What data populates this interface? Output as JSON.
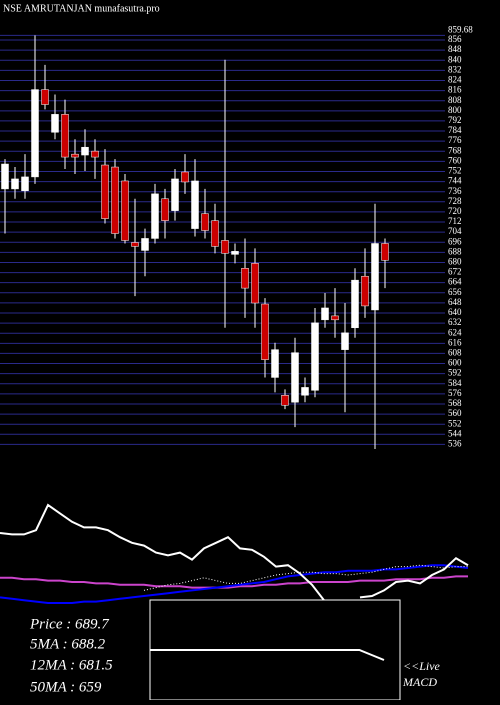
{
  "chart_data": [
    {
      "type": "candlestick",
      "title": "NSE AMRUTANJAN munafasutra.pro",
      "up_color": "#ffffff",
      "down_color": "#cc0000",
      "grid": true,
      "grid_color": "#2a2a8a",
      "open": [
        738.2,
        738.2,
        736.7,
        747.7,
        816.8,
        783.0,
        797.2,
        765.7,
        765.0,
        768.1,
        757.1,
        755.5,
        744.5,
        695.8,
        689.5,
        699.0,
        730.4,
        721.0,
        751.6,
        706.8,
        718.6,
        713.1,
        697.4,
        686.4,
        675.4,
        679.3,
        647.1,
        589.0,
        574.9,
        569.4,
        574.9,
        578.8,
        634.6,
        637.7,
        611.0,
        628.3,
        669.1,
        642.4,
        695.0
      ],
      "high": [
        761.8,
        755.5,
        765.7,
        859.7,
        836.4,
        812.9,
        808.9,
        777.5,
        785.4,
        777.5,
        769.7,
        761.8,
        750.0,
        730.4,
        706.8,
        742.2,
        738.2,
        754.0,
        765.7,
        761.8,
        738.2,
        726.5,
        840.4,
        695.0,
        699.0,
        691.1,
        651.8,
        616.5,
        579.6,
        620.4,
        589.0,
        644.0,
        655.8,
        659.7,
        647.9,
        675.4,
        691.1,
        726.5,
        699.0
      ],
      "low": [
        702.9,
        730.4,
        730.4,
        742.2,
        801.1,
        777.5,
        754.0,
        750.0,
        752.4,
        746.1,
        710.8,
        699.0,
        695.0,
        653.4,
        669.1,
        695.0,
        699.0,
        713.1,
        734.3,
        700.5,
        699.0,
        687.2,
        628.3,
        679.3,
        636.1,
        628.3,
        589.0,
        577.2,
        563.9,
        549.7,
        569.4,
        573.3,
        628.3,
        620.4,
        561.5,
        620.4,
        636.1,
        532.4,
        659.7
      ],
      "close": [
        757.9,
        746.1,
        747.7,
        816.8,
        805.0,
        797.2,
        763.4,
        763.4,
        771.2,
        763.4,
        714.7,
        702.9,
        697.4,
        692.7,
        699.0,
        734.3,
        713.1,
        746.1,
        743.7,
        744.5,
        705.3,
        692.7,
        687.2,
        688.8,
        659.7,
        647.9,
        603.1,
        611.0,
        567.0,
        608.6,
        581.1,
        632.2,
        644.0,
        634.6,
        624.3,
        666.0,
        645.6,
        695.0,
        681.7
      ],
      "ylim": [
        530,
        860
      ],
      "yticks": [
        859.68,
        856,
        848,
        840,
        832,
        824,
        816,
        808,
        800,
        792,
        784,
        776,
        768,
        760,
        752,
        744,
        736,
        728,
        720,
        712,
        704,
        696,
        688,
        680,
        672,
        664,
        656,
        648,
        640,
        632,
        624,
        616,
        608,
        600,
        592,
        584,
        576,
        568,
        560,
        552,
        544,
        536
      ]
    },
    {
      "type": "line",
      "ylim": [
        0,
        100
      ],
      "series": [
        {
          "color": "#cc44cc",
          "values": [
            23,
            23,
            22,
            22,
            21,
            21,
            20,
            20,
            19,
            19,
            18,
            18,
            18,
            17,
            17,
            17,
            16,
            16,
            16,
            16,
            17,
            17,
            18,
            18,
            19,
            19,
            20,
            20,
            20,
            20,
            21,
            21,
            21,
            22,
            22,
            22,
            23,
            23,
            24,
            24
          ]
        },
        {
          "color": "#0000ff",
          "values": [
            9,
            8,
            7,
            6,
            5,
            5,
            5,
            6,
            6,
            7,
            8,
            9,
            10,
            11,
            12,
            13,
            14,
            15,
            16,
            17,
            18,
            19,
            20,
            22,
            24,
            25,
            26,
            27,
            27,
            28,
            28,
            28,
            29,
            29,
            30,
            31,
            32,
            32,
            31,
            30
          ]
        },
        {
          "color": "#ffffff",
          "dotted": true,
          "values": [
            null,
            null,
            null,
            null,
            null,
            null,
            null,
            null,
            null,
            null,
            null,
            null,
            14,
            16,
            18,
            19,
            21,
            23,
            21,
            19,
            19,
            21,
            23,
            25,
            26,
            27,
            27,
            26,
            26,
            25,
            26,
            27,
            29,
            31,
            31,
            32,
            31,
            30,
            31,
            31
          ]
        },
        {
          "color": "#ffffff",
          "values": [
            55,
            54,
            54,
            57,
            75,
            69,
            63,
            59,
            59,
            57,
            52,
            48,
            46,
            41,
            39,
            41,
            36,
            44,
            48,
            52,
            44,
            43,
            38,
            31,
            32,
            26,
            18,
            7,
            null,
            null,
            9,
            10,
            14,
            20,
            21,
            19,
            25,
            29,
            37,
            32
          ]
        }
      ]
    },
    {
      "type": "line",
      "ylim": [
        0,
        100
      ],
      "annotations": [
        "<<Live",
        "MACD"
      ],
      "series": [
        {
          "color": "#ffffff",
          "values": [
            50,
            50,
            50,
            50,
            50,
            50,
            50,
            50,
            50,
            50,
            50,
            50,
            50,
            50,
            50,
            50,
            50,
            50,
            45,
            40
          ]
        }
      ]
    }
  ],
  "info": [
    "Price : 689.7",
    "5MA : 688.2",
    "12MA : 681.5",
    "50MA : 659"
  ]
}
